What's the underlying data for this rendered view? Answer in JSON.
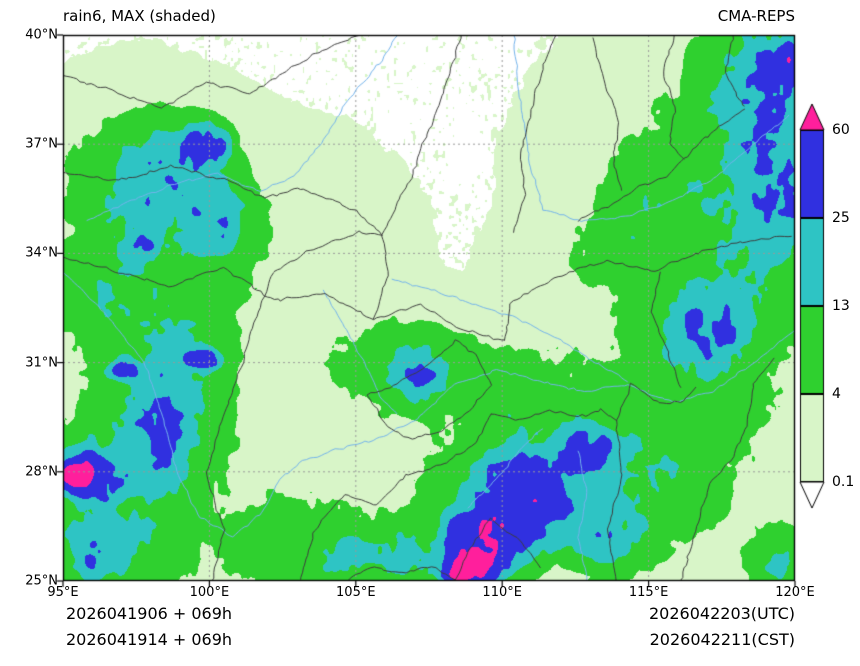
{
  "header": {
    "title": "rain6, MAX (shaded)",
    "model": "CMA-REPS"
  },
  "axes": {
    "x_tick_labels": [
      "95°E",
      "100°E",
      "105°E",
      "110°E",
      "115°E",
      "120°E"
    ],
    "y_tick_labels": [
      "25°N",
      "28°N",
      "31°N",
      "34°N",
      "37°N",
      "40°N"
    ],
    "lon_range": [
      95,
      120
    ],
    "lat_range": [
      25,
      40
    ],
    "grid_lons": [
      100,
      105,
      110,
      115
    ],
    "grid_lats": [
      28,
      31,
      34,
      37
    ]
  },
  "colorbar": {
    "tick_labels": [
      "60",
      "25",
      "13",
      "4",
      "0.1"
    ],
    "segment_colors_top_to_bottom": [
      "#3030e0",
      "#2ec4c4",
      "#2fd02f",
      "#d8f5c8"
    ],
    "over_color": "#ff1f9c",
    "under_color": "#ffffff"
  },
  "footer": {
    "init_utc": "2026041906 + 069h",
    "init_cst": "2026041914 + 069h",
    "valid_utc": "2026042203(UTC)",
    "valid_cst": "2026042211(CST)"
  },
  "chart_data": {
    "type": "heatmap",
    "variable": "rain6, MAX (shaded)",
    "model": "CMA-REPS",
    "extent": {
      "lon": [
        95,
        120
      ],
      "lat": [
        25,
        40
      ]
    },
    "levels": [
      0.1,
      4,
      13,
      25,
      60
    ],
    "band_colors": [
      "#ffffff",
      "#d8f5c8",
      "#2fd02f",
      "#2ec4c4",
      "#3030e0",
      "#ff1f9c"
    ],
    "line_colors": {
      "province_boundary": "#3d3d3d",
      "river": "#74b4ec",
      "grid": "#9a9a9a"
    },
    "field_gaussians_format": "[lon_e, lat_n, sigma_lon, sigma_lat, peak_mm]",
    "field_gaussians": [
      [
        97.5,
        30,
        3.5,
        4.5,
        3
      ],
      [
        108,
        27,
        6,
        2.5,
        3
      ],
      [
        117,
        35,
        4,
        4,
        3
      ],
      [
        116,
        29,
        4,
        3,
        3
      ],
      [
        102,
        34.5,
        3,
        2,
        2.5
      ],
      [
        96.5,
        33,
        1.8,
        1.5,
        9
      ],
      [
        97.5,
        35.8,
        2.2,
        1.8,
        10
      ],
      [
        99.5,
        31.5,
        1.5,
        2.5,
        9
      ],
      [
        97,
        26,
        2,
        1.5,
        10
      ],
      [
        97,
        28.3,
        2.2,
        1.6,
        8
      ],
      [
        102.5,
        26,
        2,
        1.2,
        8
      ],
      [
        106.5,
        31,
        2.5,
        1.2,
        9
      ],
      [
        111,
        29.8,
        2.5,
        1.5,
        8
      ],
      [
        115,
        28,
        2.5,
        2,
        8
      ],
      [
        117.5,
        33,
        2.5,
        2.5,
        9
      ],
      [
        118.5,
        37.5,
        2.5,
        2.5,
        10
      ],
      [
        114.8,
        35.5,
        1.5,
        1.5,
        6
      ],
      [
        113.5,
        34,
        1.5,
        1,
        5
      ],
      [
        98.3,
        29.5,
        1.2,
        1.8,
        16
      ],
      [
        98.8,
        36.3,
        1.6,
        1.2,
        17
      ],
      [
        100.3,
        34.8,
        1.2,
        0.9,
        16
      ],
      [
        96,
        25.8,
        1,
        0.8,
        16
      ],
      [
        107.3,
        30.6,
        0.9,
        0.7,
        16
      ],
      [
        119.2,
        38.8,
        1.4,
        1.6,
        18
      ],
      [
        119.5,
        35.5,
        1.2,
        1.5,
        17
      ],
      [
        117,
        31.8,
        1.6,
        1,
        16
      ],
      [
        113.5,
        26.3,
        1.2,
        1,
        16
      ],
      [
        104.8,
        25.6,
        1,
        0.7,
        15
      ],
      [
        106.8,
        25.7,
        1.1,
        0.8,
        14
      ],
      [
        119.5,
        25.5,
        1,
        0.9,
        13
      ],
      [
        110.7,
        27.3,
        1.6,
        1.2,
        40
      ],
      [
        109.3,
        26.2,
        1.2,
        0.9,
        42
      ],
      [
        112.8,
        28.6,
        0.8,
        0.6,
        32
      ],
      [
        99.9,
        37,
        0.7,
        0.5,
        30
      ],
      [
        95.8,
        27.9,
        0.9,
        0.6,
        45
      ],
      [
        119.8,
        39.3,
        0.4,
        0.5,
        30
      ],
      [
        97,
        30.8,
        0.5,
        0.25,
        26
      ],
      [
        99.8,
        31.1,
        0.6,
        0.25,
        26
      ],
      [
        97.8,
        34.2,
        0.5,
        0.3,
        24
      ],
      [
        95.4,
        27.9,
        0.45,
        0.3,
        70
      ],
      [
        109.2,
        25.5,
        0.8,
        0.45,
        65
      ],
      [
        108.6,
        25.2,
        0.5,
        0.3,
        55
      ]
    ],
    "province_boundaries": [
      [
        [
          95,
          33.9
        ],
        [
          96.8,
          33.5
        ],
        [
          98.6,
          33.1
        ],
        [
          100.5,
          33.6
        ],
        [
          102.2,
          32.7
        ],
        [
          103.9,
          32.9
        ],
        [
          105.6,
          32.2
        ],
        [
          107.2,
          32.6
        ],
        [
          108.7,
          31.9
        ],
        [
          110.1,
          31.6
        ]
      ],
      [
        [
          100.1,
          25
        ],
        [
          100.5,
          26.4
        ],
        [
          99.9,
          27.9
        ],
        [
          100.4,
          29.4
        ],
        [
          101.1,
          30.9
        ],
        [
          101.6,
          32.3
        ],
        [
          102.2,
          33.5
        ]
      ],
      [
        [
          103.1,
          25
        ],
        [
          103.6,
          26.4
        ],
        [
          104.6,
          27.4
        ],
        [
          105.7,
          27.1
        ],
        [
          106.7,
          27.9
        ],
        [
          108,
          28.2
        ],
        [
          109.1,
          28.8
        ],
        [
          109.6,
          29.6
        ]
      ],
      [
        [
          108.4,
          25
        ],
        [
          108.9,
          25.9
        ],
        [
          109.6,
          26.7
        ],
        [
          110.6,
          26.1
        ],
        [
          111.3,
          25.4
        ]
      ],
      [
        [
          110.1,
          31.6
        ],
        [
          110.3,
          32.6
        ],
        [
          111.2,
          33.1
        ],
        [
          112.3,
          33.5
        ],
        [
          113.6,
          33.8
        ],
        [
          115.1,
          33.5
        ],
        [
          116.6,
          34
        ],
        [
          118.1,
          34.3
        ],
        [
          119.9,
          34.5
        ]
      ],
      [
        [
          105.6,
          32.2
        ],
        [
          106.1,
          33.4
        ],
        [
          105.9,
          34.5
        ],
        [
          106.5,
          35.5
        ],
        [
          107,
          36.3
        ],
        [
          107.4,
          37.2
        ],
        [
          107.9,
          38.2
        ],
        [
          108.3,
          39.2
        ],
        [
          108.6,
          40
        ]
      ],
      [
        [
          110.4,
          34.6
        ],
        [
          110.8,
          35.6
        ],
        [
          110.6,
          36.6
        ],
        [
          110.9,
          37.6
        ],
        [
          111.2,
          38.6
        ],
        [
          111.6,
          39.6
        ],
        [
          111.8,
          40
        ]
      ],
      [
        [
          112.6,
          34.9
        ],
        [
          113.6,
          35.3
        ],
        [
          114.6,
          35.8
        ],
        [
          115.6,
          36.1
        ],
        [
          116.2,
          36.6
        ],
        [
          116.8,
          37.1
        ],
        [
          117.6,
          37.6
        ],
        [
          118.3,
          38
        ]
      ],
      [
        [
          95,
          36.2
        ],
        [
          96.9,
          36
        ],
        [
          98.7,
          36.4
        ],
        [
          100.6,
          36
        ],
        [
          101.9,
          35.5
        ],
        [
          103,
          35.8
        ],
        [
          104.1,
          35.5
        ],
        [
          105.1,
          35.1
        ],
        [
          105.9,
          34.5
        ]
      ],
      [
        [
          102.2,
          33.5
        ],
        [
          103.2,
          34
        ],
        [
          104.2,
          34.3
        ],
        [
          105.1,
          34.6
        ],
        [
          105.9,
          34.5
        ]
      ],
      [
        [
          113.9,
          25
        ],
        [
          113.6,
          26.4
        ],
        [
          114.1,
          27.9
        ],
        [
          113.9,
          29.4
        ],
        [
          114.4,
          30.4
        ],
        [
          115.4,
          29.9
        ],
        [
          116.1,
          29.9
        ],
        [
          116.6,
          30.3
        ]
      ],
      [
        [
          116.1,
          25
        ],
        [
          116.6,
          26.4
        ],
        [
          117.1,
          27.7
        ],
        [
          117.9,
          28.4
        ],
        [
          118.4,
          29.4
        ],
        [
          118.6,
          30.4
        ],
        [
          119.3,
          31.1
        ]
      ],
      [
        [
          105.4,
          30.1
        ],
        [
          106.4,
          30.4
        ],
        [
          107.4,
          30.9
        ],
        [
          108.4,
          31.6
        ],
        [
          109.1,
          31.2
        ],
        [
          109.6,
          30.4
        ],
        [
          108.9,
          29.7
        ],
        [
          107.9,
          29.1
        ],
        [
          106.9,
          28.9
        ],
        [
          106,
          29.3
        ],
        [
          105.4,
          30.1
        ]
      ],
      [
        [
          95,
          38.9
        ],
        [
          96.9,
          38.4
        ],
        [
          98.4,
          38
        ],
        [
          99.9,
          38.7
        ],
        [
          101.4,
          38.4
        ],
        [
          102.6,
          39
        ],
        [
          103.9,
          39.6
        ],
        [
          105.1,
          40
        ]
      ],
      [
        [
          113.1,
          39.9
        ],
        [
          113.5,
          38.7
        ],
        [
          114,
          37.6
        ],
        [
          113.8,
          36.5
        ],
        [
          114.1,
          35.7
        ]
      ],
      [
        [
          115.9,
          40
        ],
        [
          115.5,
          39
        ],
        [
          115.9,
          38
        ],
        [
          115.7,
          37
        ],
        [
          116.2,
          36.6
        ]
      ],
      [
        [
          117.9,
          40
        ],
        [
          117.6,
          39
        ],
        [
          118.1,
          38.2
        ],
        [
          118.3,
          38
        ]
      ],
      [
        [
          115.4,
          33.5
        ],
        [
          115.1,
          32.4
        ],
        [
          115.6,
          31.4
        ],
        [
          116.1,
          30.3
        ]
      ],
      [
        [
          109.6,
          29.6
        ],
        [
          110.6,
          29.4
        ],
        [
          111.6,
          29.7
        ],
        [
          112.6,
          29.5
        ],
        [
          113.4,
          29.7
        ],
        [
          113.9,
          29.4
        ]
      ],
      [
        [
          104.6,
          25
        ],
        [
          105.6,
          25.4
        ],
        [
          106.6,
          25.2
        ],
        [
          107.6,
          25.4
        ],
        [
          108.4,
          25
        ]
      ]
    ],
    "rivers": [
      [
        [
          95,
          33.5
        ],
        [
          96.5,
          32.3
        ],
        [
          97.8,
          31
        ],
        [
          98.4,
          29.5
        ],
        [
          98.9,
          28
        ],
        [
          99.6,
          26.8
        ],
        [
          100.8,
          26.2
        ],
        [
          101.8,
          26.9
        ],
        [
          102.4,
          27.8
        ],
        [
          103.2,
          28.3
        ],
        [
          104.3,
          28.6
        ],
        [
          105.7,
          28.9
        ],
        [
          107,
          29.4
        ],
        [
          108.4,
          30.4
        ],
        [
          109.8,
          30.8
        ],
        [
          111.3,
          30.5
        ],
        [
          112.8,
          30.2
        ],
        [
          114.3,
          30.4
        ],
        [
          115.8,
          29.9
        ],
        [
          117.2,
          30.2
        ],
        [
          118.6,
          31
        ],
        [
          120,
          31.9
        ]
      ],
      [
        [
          95.8,
          34.9
        ],
        [
          97.2,
          35.4
        ],
        [
          98.8,
          35.9
        ],
        [
          100.3,
          36.2
        ],
        [
          101.7,
          35.7
        ],
        [
          102.9,
          36.1
        ],
        [
          103.9,
          37.1
        ],
        [
          104.8,
          38.3
        ],
        [
          105.9,
          39.3
        ],
        [
          106.4,
          40
        ]
      ],
      [
        [
          110.4,
          40
        ],
        [
          110.6,
          38.3
        ],
        [
          110.9,
          36.6
        ],
        [
          111.4,
          35.2
        ],
        [
          112.7,
          34.9
        ],
        [
          114.2,
          35
        ],
        [
          115.7,
          35.4
        ],
        [
          117.1,
          36
        ],
        [
          118.6,
          37
        ],
        [
          119.8,
          37.8
        ]
      ],
      [
        [
          106.2,
          33.3
        ],
        [
          107.6,
          33
        ],
        [
          109,
          32.6
        ],
        [
          110.6,
          32.2
        ],
        [
          112,
          31.6
        ],
        [
          113.4,
          30.9
        ],
        [
          114.3,
          30.5
        ]
      ],
      [
        [
          103.9,
          33
        ],
        [
          104.6,
          32
        ],
        [
          105.3,
          31
        ],
        [
          105.9,
          30
        ],
        [
          106.4,
          29.6
        ]
      ],
      [
        [
          112.9,
          25
        ],
        [
          112.6,
          26.2
        ],
        [
          112.9,
          27.4
        ],
        [
          112.6,
          28.6
        ]
      ],
      [
        [
          108.8,
          27
        ],
        [
          109.8,
          27.8
        ],
        [
          110.6,
          28.6
        ],
        [
          111.4,
          29.2
        ]
      ]
    ]
  }
}
